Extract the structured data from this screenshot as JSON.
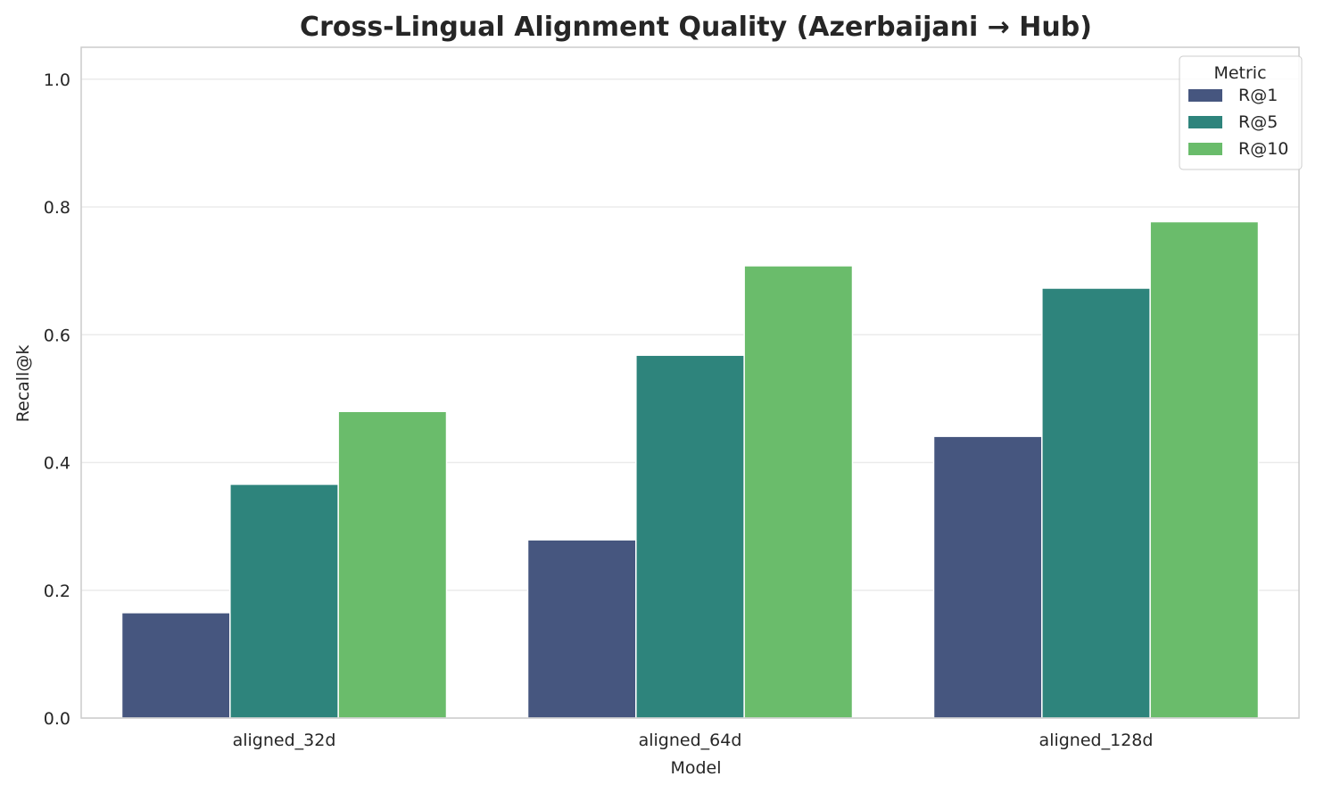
{
  "chart_data": {
    "type": "bar",
    "title": "Cross-Lingual Alignment Quality (Azerbaijani → Hub)",
    "xlabel": "Model",
    "ylabel": "Recall@k",
    "ylim": [
      0,
      1.05
    ],
    "yticks": [
      "0.0",
      "0.2",
      "0.4",
      "0.6",
      "0.8",
      "1.0"
    ],
    "grid": true,
    "legend": {
      "title": "Metric",
      "placement": "top-right"
    },
    "categories": [
      "aligned_32d",
      "aligned_64d",
      "aligned_128d"
    ],
    "series": [
      {
        "name": "R@1",
        "color": "#46567f",
        "values": [
          0.165,
          0.279,
          0.441
        ]
      },
      {
        "name": "R@5",
        "color": "#2e847c",
        "values": [
          0.366,
          0.568,
          0.673
        ]
      },
      {
        "name": "R@10",
        "color": "#6abc6b",
        "values": [
          0.48,
          0.708,
          0.777
        ]
      }
    ]
  }
}
